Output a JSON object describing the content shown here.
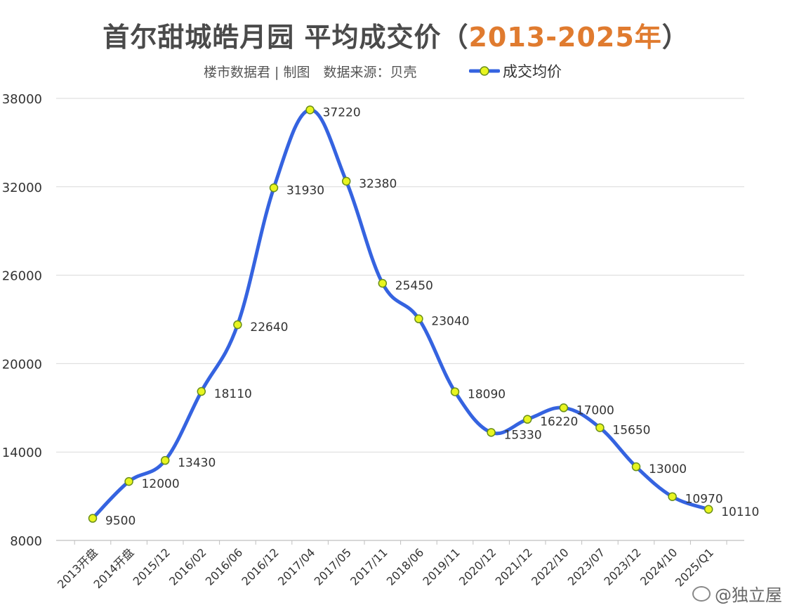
{
  "header": {
    "title_main": "首尔甜城皓月园 平均成交价",
    "title_paren_open": "（",
    "title_years": "2013-2025年",
    "title_paren_close": "）",
    "subtitle": "楼市数据君 | 制图　数据来源：贝壳"
  },
  "watermark": "@独立屋",
  "colors": {
    "line": "#3563e0",
    "marker_fill": "#e8f520",
    "marker_stroke": "#6a8f1a",
    "grid": "#d9d9d9",
    "title": "#4a4a4a",
    "title_years": "#e07b2f"
  },
  "chart_data": {
    "type": "line",
    "title": "首尔甜城皓月园 平均成交价（2013-2025年）",
    "subtitle": "楼市数据君 | 制图　数据来源：贝壳",
    "categories": [
      "2013开盘",
      "2014开盘",
      "2015/12",
      "2016/02",
      "2016/06",
      "2016/12",
      "2017/04",
      "2017/05",
      "2017/11",
      "2018/06",
      "2019/11",
      "2020/12",
      "2021/12",
      "2022/10",
      "2023/07",
      "2023/12",
      "2024/10",
      "2025/Q1"
    ],
    "series": [
      {
        "name": "成交均价",
        "values": [
          9500,
          12000,
          13430,
          18110,
          22640,
          31930,
          37220,
          32380,
          25450,
          23040,
          18090,
          15330,
          16220,
          17000,
          15650,
          13000,
          10970,
          10110
        ]
      }
    ],
    "y_ticks": [
      8000,
      14000,
      20000,
      26000,
      32000,
      38000
    ],
    "ylim": [
      8000,
      38000
    ],
    "xlabel": "",
    "ylabel": "",
    "grid": true,
    "legend_position": "top-center",
    "data_labels": true,
    "smooth": true
  }
}
